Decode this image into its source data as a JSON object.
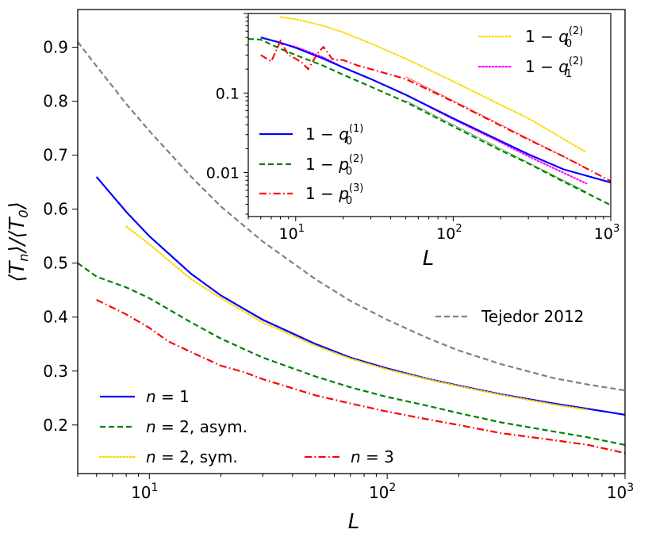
{
  "chart_data": [
    {
      "type": "line",
      "xscale": "log",
      "xlabel": "L",
      "ylabel": "⟨T_n⟩/⟨T_0⟩",
      "xlim": [
        5,
        1000
      ],
      "ylim": [
        0.11,
        0.97
      ],
      "xticks": [
        {
          "value": 10,
          "label": "10",
          "exp": "1"
        },
        {
          "value": 100,
          "label": "10",
          "exp": "2"
        },
        {
          "value": 1000,
          "label": "10",
          "exp": "3"
        }
      ],
      "yticks": [
        {
          "value": 0.2,
          "label": "0.2"
        },
        {
          "value": 0.3,
          "label": "0.3"
        },
        {
          "value": 0.4,
          "label": "0.4"
        },
        {
          "value": 0.5,
          "label": "0.5"
        },
        {
          "value": 0.6,
          "label": "0.6"
        },
        {
          "value": 0.7,
          "label": "0.7"
        },
        {
          "value": 0.8,
          "label": "0.8"
        },
        {
          "value": 0.9,
          "label": "0.9"
        }
      ],
      "series": [
        {
          "name": "Tejedor 2012",
          "color": "#808080",
          "style": "dashed",
          "x": [
            5,
            6,
            8,
            10,
            15,
            20,
            30,
            50,
            70,
            100,
            150,
            200,
            300,
            500,
            700,
            1000
          ],
          "y": [
            0.91,
            0.865,
            0.795,
            0.745,
            0.66,
            0.605,
            0.54,
            0.47,
            0.43,
            0.395,
            0.36,
            0.338,
            0.313,
            0.287,
            0.275,
            0.264
          ]
        },
        {
          "name": "n = 1",
          "color": "#0000ff",
          "style": "solid",
          "x": [
            6,
            8,
            10,
            15,
            20,
            30,
            50,
            70,
            100,
            150,
            200,
            300,
            500,
            700,
            1000
          ],
          "y": [
            0.66,
            0.595,
            0.55,
            0.48,
            0.44,
            0.395,
            0.35,
            0.325,
            0.305,
            0.285,
            0.273,
            0.257,
            0.24,
            0.23,
            0.219
          ]
        },
        {
          "name": "n = 2, asym.",
          "color": "#008000",
          "style": "dashed",
          "x": [
            5,
            6,
            8,
            10,
            15,
            20,
            30,
            50,
            70,
            100,
            150,
            200,
            300,
            500,
            700,
            1000
          ],
          "y": [
            0.5,
            0.475,
            0.455,
            0.435,
            0.39,
            0.36,
            0.325,
            0.29,
            0.27,
            0.252,
            0.235,
            0.222,
            0.205,
            0.188,
            0.177,
            0.163
          ]
        },
        {
          "name": "n = 2, sym.",
          "color": "#ffd700",
          "style": "dotted",
          "x": [
            8,
            10,
            15,
            20,
            30,
            50,
            70,
            100,
            150,
            200,
            300,
            500,
            700
          ],
          "y": [
            0.568,
            0.535,
            0.47,
            0.435,
            0.39,
            0.347,
            0.323,
            0.303,
            0.284,
            0.272,
            0.256,
            0.238,
            0.228
          ]
        },
        {
          "name": "n = 3",
          "color": "#ff0000",
          "style": "dashdot",
          "x": [
            6,
            8,
            10,
            12,
            15,
            20,
            25,
            30,
            50,
            70,
            100,
            150,
            200,
            300,
            500,
            700,
            1000
          ],
          "y": [
            0.432,
            0.405,
            0.38,
            0.355,
            0.335,
            0.31,
            0.298,
            0.285,
            0.255,
            0.24,
            0.225,
            0.21,
            0.2,
            0.185,
            0.172,
            0.163,
            0.148
          ]
        }
      ],
      "legend": [
        {
          "label": "Tejedor 2012",
          "series": "Tejedor 2012"
        },
        {
          "label": "n = 1",
          "series": "n = 1"
        },
        {
          "label": "n = 2, asym.",
          "series": "n = 2, asym."
        },
        {
          "label": "n = 2, sym.",
          "series": "n = 2, sym."
        },
        {
          "label": "n = 3",
          "series": "n = 3"
        }
      ]
    },
    {
      "type": "line",
      "xscale": "log",
      "yscale": "log",
      "xlabel": "L",
      "ylabel": "",
      "xlim": [
        5,
        1000
      ],
      "ylim": [
        0.0028,
        1.0
      ],
      "xticks": [
        {
          "value": 10,
          "label": "10",
          "exp": "1"
        },
        {
          "value": 100,
          "label": "10",
          "exp": "2"
        },
        {
          "value": 1000,
          "label": "10",
          "exp": "3"
        }
      ],
      "yticks": [
        {
          "value": 0.1,
          "label": "0.1"
        },
        {
          "value": 0.01,
          "label": "0.01"
        }
      ],
      "series": [
        {
          "name": "1 − q0(2)",
          "color": "#ffd700",
          "style": "dotted",
          "x": [
            8,
            10,
            15,
            20,
            30,
            50,
            100,
            200,
            300,
            700
          ],
          "y": [
            0.9,
            0.85,
            0.7,
            0.58,
            0.42,
            0.27,
            0.14,
            0.071,
            0.048,
            0.018
          ]
        },
        {
          "name": "1 − q1(2)",
          "color": "#ff00ff",
          "style": "dotted",
          "x": [
            8,
            10,
            15,
            20,
            30,
            50,
            100,
            200,
            300,
            700
          ],
          "y": [
            0.42,
            0.38,
            0.28,
            0.21,
            0.15,
            0.095,
            0.047,
            0.024,
            0.016,
            0.0073
          ]
        },
        {
          "name": "1 − q0(1)",
          "color": "#0000ff",
          "style": "solid",
          "x": [
            6,
            8,
            10,
            15,
            20,
            30,
            50,
            100,
            200,
            300,
            500,
            1000
          ],
          "y": [
            0.5,
            0.43,
            0.37,
            0.27,
            0.21,
            0.15,
            0.095,
            0.048,
            0.025,
            0.017,
            0.011,
            0.0075
          ]
        },
        {
          "name": "1 − p0(2)",
          "color": "#008000",
          "style": "dashed",
          "x": [
            5,
            6,
            8,
            10,
            15,
            20,
            30,
            50,
            100,
            200,
            300,
            500,
            1000
          ],
          "y": [
            0.48,
            0.47,
            0.36,
            0.3,
            0.22,
            0.17,
            0.12,
            0.077,
            0.038,
            0.019,
            0.013,
            0.0077,
            0.0039
          ]
        },
        {
          "name": "1 − p0(3)",
          "color": "#ff0000",
          "style": "dashdot",
          "x": [
            6,
            7,
            8,
            9,
            10,
            11,
            12,
            13,
            14,
            15,
            16,
            17,
            18,
            20,
            25,
            30,
            50,
            100,
            200,
            300,
            500,
            1000
          ],
          "y": [
            0.3,
            0.25,
            0.45,
            0.3,
            0.27,
            0.24,
            0.2,
            0.26,
            0.33,
            0.38,
            0.32,
            0.27,
            0.26,
            0.26,
            0.22,
            0.2,
            0.15,
            0.078,
            0.039,
            0.026,
            0.016,
            0.0078
          ]
        }
      ],
      "legend": [
        {
          "label": "1 − q",
          "sub": "0",
          "sup": "(2)",
          "series": "1 − q0(2)"
        },
        {
          "label": "1 − q",
          "sub": "1",
          "sup": "(2)",
          "series": "1 − q1(2)"
        },
        {
          "label": "1 − q",
          "sub": "0",
          "sup": "(1)",
          "series": "1 − q0(1)"
        },
        {
          "label": "1 − p",
          "sub": "0",
          "sup": "(2)",
          "series": "1 − p0(2)"
        },
        {
          "label": "1 − p",
          "sub": "0",
          "sup": "(3)",
          "series": "1 − p0(3)"
        }
      ]
    }
  ]
}
